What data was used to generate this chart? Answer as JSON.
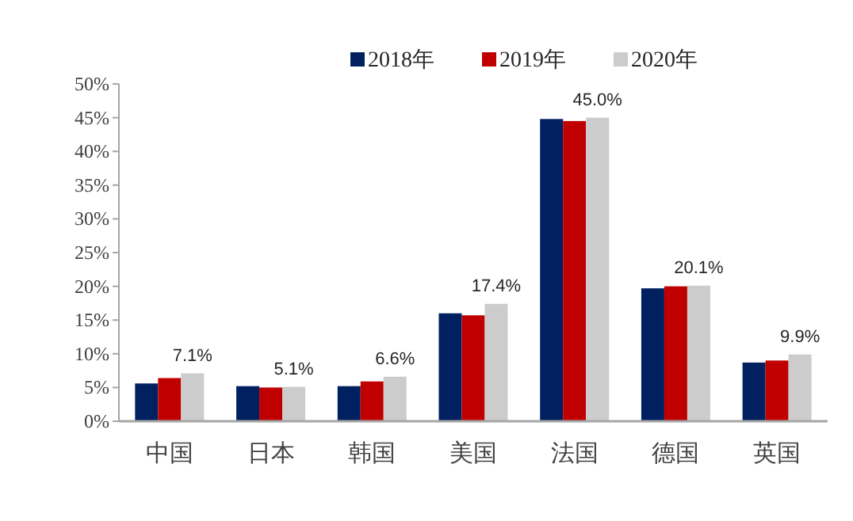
{
  "chart_data": {
    "type": "bar",
    "categories": [
      "中国",
      "日本",
      "韩国",
      "美国",
      "法国",
      "德国",
      "英国"
    ],
    "series": [
      {
        "name": "2018年",
        "color": "#002060",
        "values": [
          5.6,
          5.2,
          5.2,
          16.0,
          44.8,
          19.7,
          8.7
        ]
      },
      {
        "name": "2019年",
        "color": "#c00000",
        "values": [
          6.4,
          5.0,
          5.9,
          15.7,
          44.5,
          20.0,
          9.0
        ]
      },
      {
        "name": "2020年",
        "color": "#cccccc",
        "values": [
          7.1,
          5.1,
          6.6,
          17.4,
          45.0,
          20.1,
          9.9
        ],
        "value_labels": [
          "7.1%",
          "5.1%",
          "6.6%",
          "17.4%",
          "45.0%",
          "20.1%",
          "9.9%"
        ]
      }
    ],
    "ylim": [
      0,
      50
    ],
    "yticks": [
      {
        "value": 0,
        "label": "0%"
      },
      {
        "value": 5,
        "label": "5%"
      },
      {
        "value": 10,
        "label": "10%"
      },
      {
        "value": 15,
        "label": "15%"
      },
      {
        "value": 20,
        "label": "20%"
      },
      {
        "value": 25,
        "label": "25%"
      },
      {
        "value": 30,
        "label": "30%"
      },
      {
        "value": 35,
        "label": "35%"
      },
      {
        "value": 40,
        "label": "40%"
      },
      {
        "value": 45,
        "label": "45%"
      },
      {
        "value": 50,
        "label": "50%"
      }
    ],
    "grid": false,
    "legend": "top"
  }
}
